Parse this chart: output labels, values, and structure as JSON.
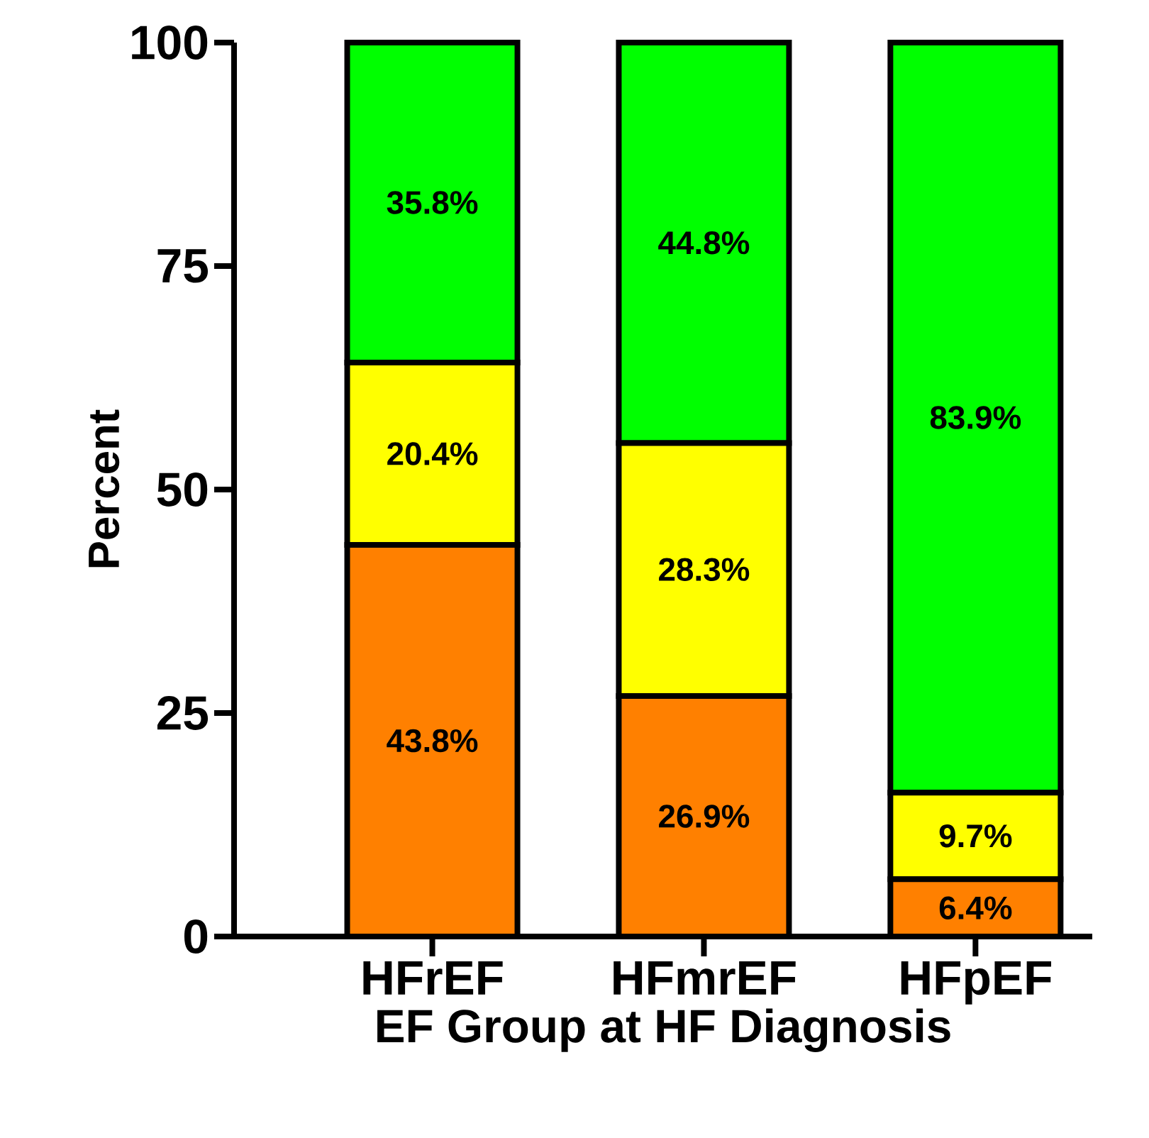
{
  "chart_data": {
    "type": "bar",
    "stacked": true,
    "xlabel": "EF Group at HF Diagnosis",
    "ylabel": "Percent",
    "categories": [
      "HFrEF",
      "HFmrEF",
      "HFpEF"
    ],
    "series": [
      {
        "color": "#ff8000",
        "values": [
          43.8,
          26.9,
          6.4
        ],
        "value_labels": [
          "43.8%",
          "26.9%",
          "6.4%"
        ]
      },
      {
        "color": "#ffff00",
        "values": [
          20.4,
          28.3,
          9.7
        ],
        "value_labels": [
          "20.4%",
          "28.3%",
          "9.7%"
        ]
      },
      {
        "color": "#00ff00",
        "values": [
          35.8,
          44.8,
          83.9
        ],
        "value_labels": [
          "35.8%",
          "44.8%",
          "83.9%"
        ]
      }
    ],
    "ylim": [
      0,
      100
    ],
    "yticks": [
      0,
      25,
      50,
      75,
      100
    ]
  }
}
